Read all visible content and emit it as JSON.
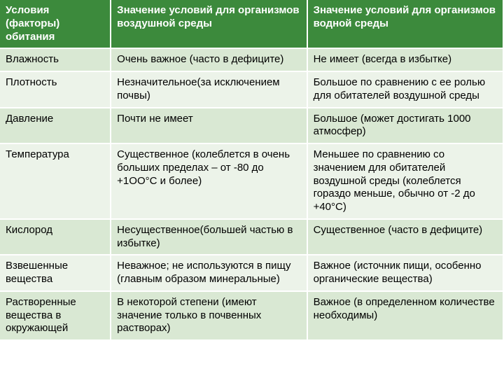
{
  "table": {
    "header_bg": "#3c8a3c",
    "header_color": "#ffffff",
    "row_alt_bg": [
      "#d9e8d3",
      "#ecf3e9"
    ],
    "text_color": "#000000",
    "columns": [
      "Условия (факторы) обитания",
      "Значение условий для организмов                    воздушной среды",
      "Значение условий для организмов       водной среды"
    ],
    "rows": [
      [
        "Влажность",
        "Очень важное (часто в дефиците)",
        "Не имеет (всегда в избытке)"
      ],
      [
        "Плотность",
        "Незначительное(за исключением почвы)",
        "Большое по сравнению с ее ролью для обитателей воздушной среды"
      ],
      [
        "Давление",
        "Почти не имеет",
        "Большое (может достигать 1000 атмосфер)"
      ],
      [
        "Температура",
        "Существенное (колеблется в очень больших пределах – от -80 до +1ОО°С и более)",
        "Меньшее по сравнению со значением для обитателей воздушной среды (колеблется гораздо меньше, обычно от -2 до +40°С)"
      ],
      [
        "Кислород",
        "Несущественное(большей частью в избытке)",
        "Существенное (часто в дефиците)"
      ],
      [
        "Взвешенные вещества",
        "Неважное; не используются в пищу (главным образом минеральные)",
        "Важное (источник пищи, особенно органические вещества)"
      ],
      [
        "Растворенные вещества в окружающей",
        "В некоторой степени (имеют значение только в почвенных растворах)",
        "Важное (в определенном количестве необходимы)"
      ]
    ]
  }
}
